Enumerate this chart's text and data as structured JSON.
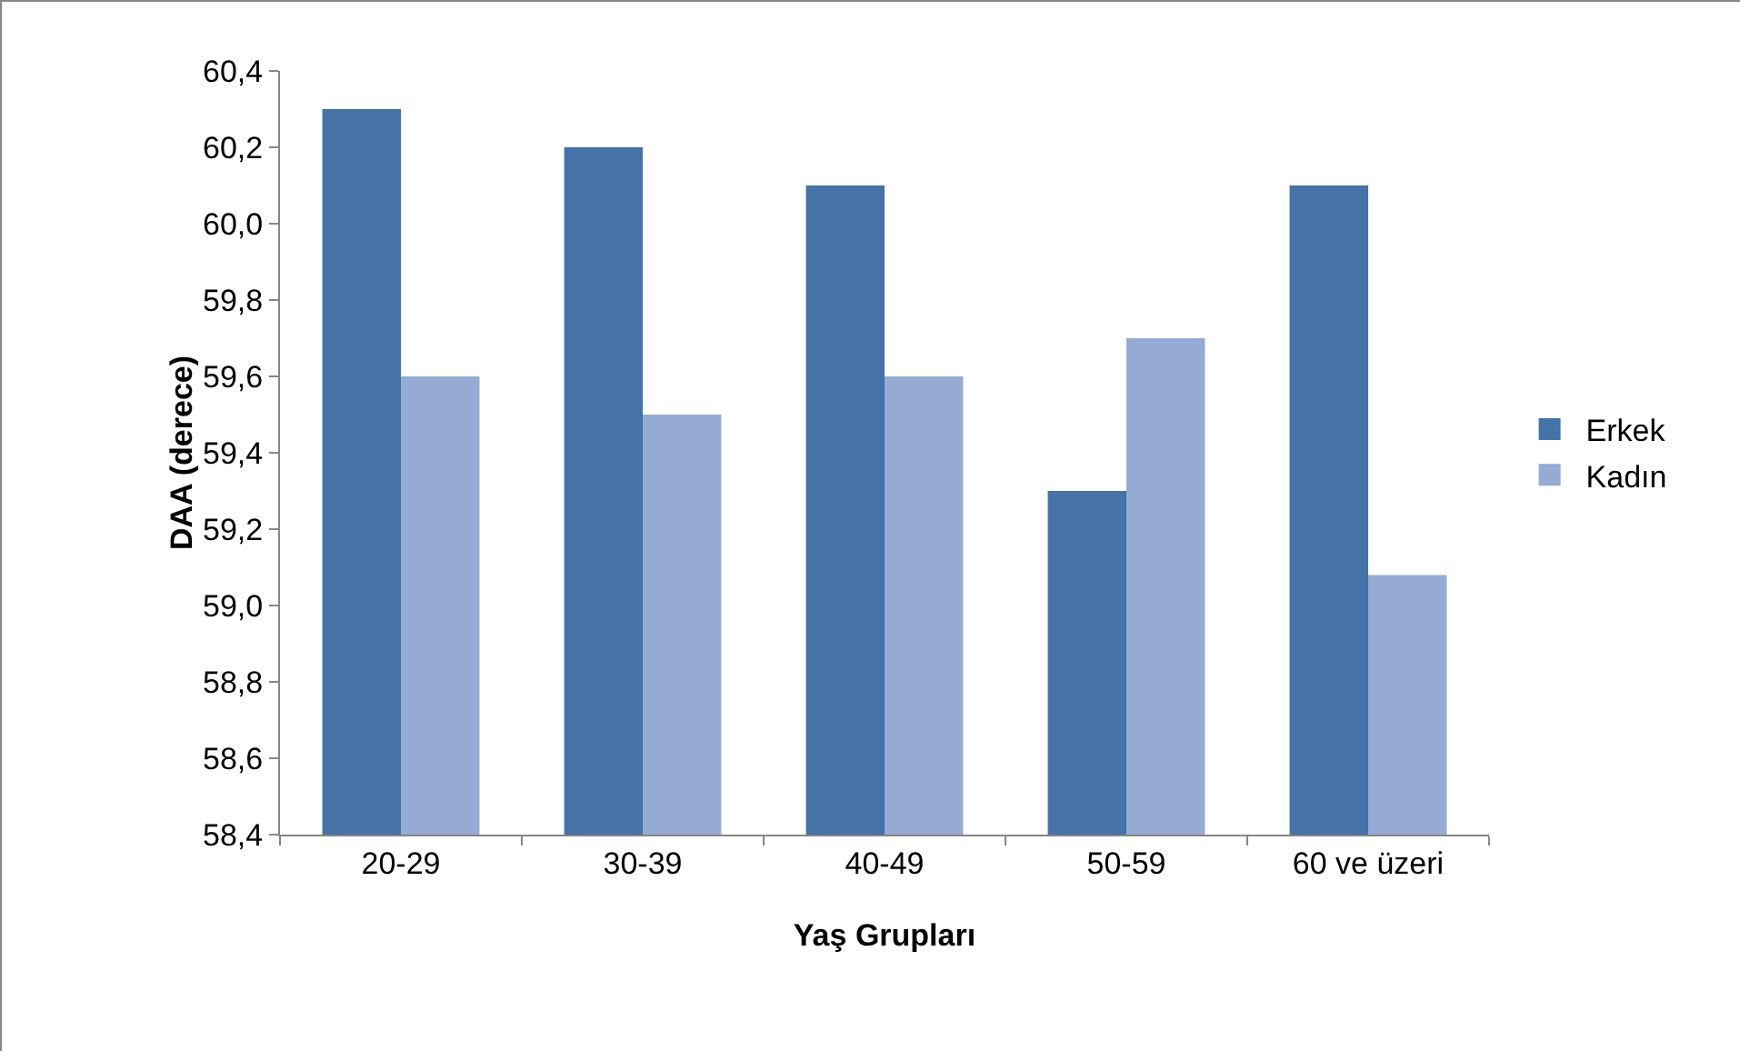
{
  "chart_data": {
    "type": "bar",
    "xlabel": "Yaş Grupları",
    "ylabel": "DAA (derece)",
    "categories": [
      "20-29",
      "30-39",
      "40-49",
      "50-59",
      "60 ve üzeri"
    ],
    "series": [
      {
        "name": "Erkek",
        "color": "#4572a7",
        "values": [
          60.3,
          60.2,
          60.1,
          59.3,
          60.1
        ]
      },
      {
        "name": "Kadın",
        "color": "#95abd4",
        "values": [
          59.6,
          59.5,
          59.6,
          59.7,
          59.08
        ]
      }
    ],
    "ylim": [
      58.4,
      60.4
    ],
    "yticks": [
      {
        "value": 58.4,
        "label": "58,4"
      },
      {
        "value": 58.6,
        "label": "58,6"
      },
      {
        "value": 58.8,
        "label": "58,8"
      },
      {
        "value": 59.0,
        "label": "59,0"
      },
      {
        "value": 59.2,
        "label": "59,2"
      },
      {
        "value": 59.4,
        "label": "59,4"
      },
      {
        "value": 59.6,
        "label": "59,6"
      },
      {
        "value": 59.8,
        "label": "59,8"
      },
      {
        "value": 60.0,
        "label": "60,0"
      },
      {
        "value": 60.2,
        "label": "60,2"
      },
      {
        "value": 60.4,
        "label": "60,4"
      }
    ],
    "grid": false,
    "legend": "right"
  }
}
